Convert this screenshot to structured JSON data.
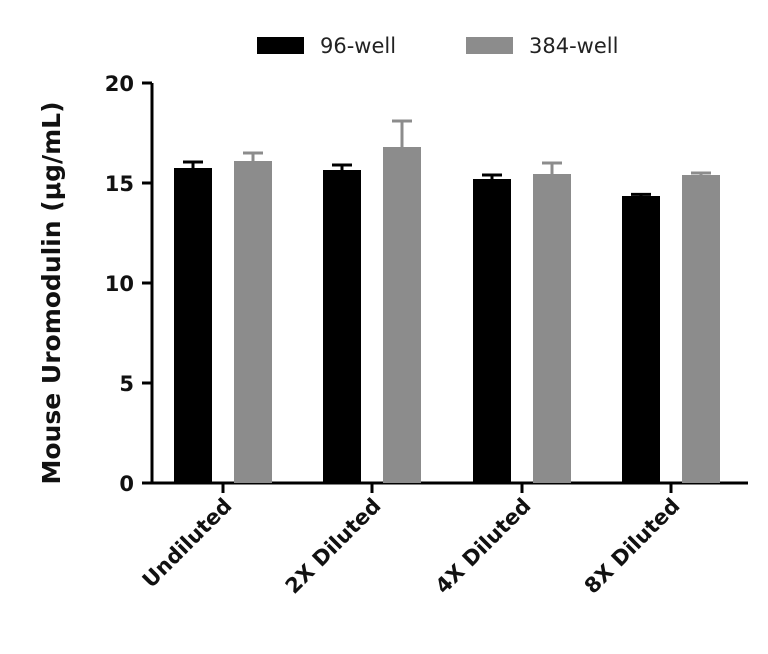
{
  "chart_data": {
    "type": "bar",
    "title": "",
    "xlabel": "",
    "ylabel": "Mouse Uromodulin (μg/mL)",
    "ylim": [
      0,
      20
    ],
    "yticks": [
      "0",
      "5",
      "10",
      "15",
      "20"
    ],
    "categories": [
      "Undiluted",
      "2X Diluted",
      "4X Diluted",
      "8X Diluted"
    ],
    "series": [
      {
        "name": "96-well",
        "color": "#000000",
        "values": [
          15.75,
          15.65,
          15.2,
          14.35
        ],
        "errors": [
          0.3,
          0.25,
          0.2,
          0.08
        ]
      },
      {
        "name": "384-well",
        "color": "#8c8c8c",
        "values": [
          16.1,
          16.8,
          15.45,
          15.4
        ],
        "errors": [
          0.4,
          1.3,
          0.55,
          0.1
        ]
      }
    ],
    "legend": "top-center",
    "grid": false
  }
}
